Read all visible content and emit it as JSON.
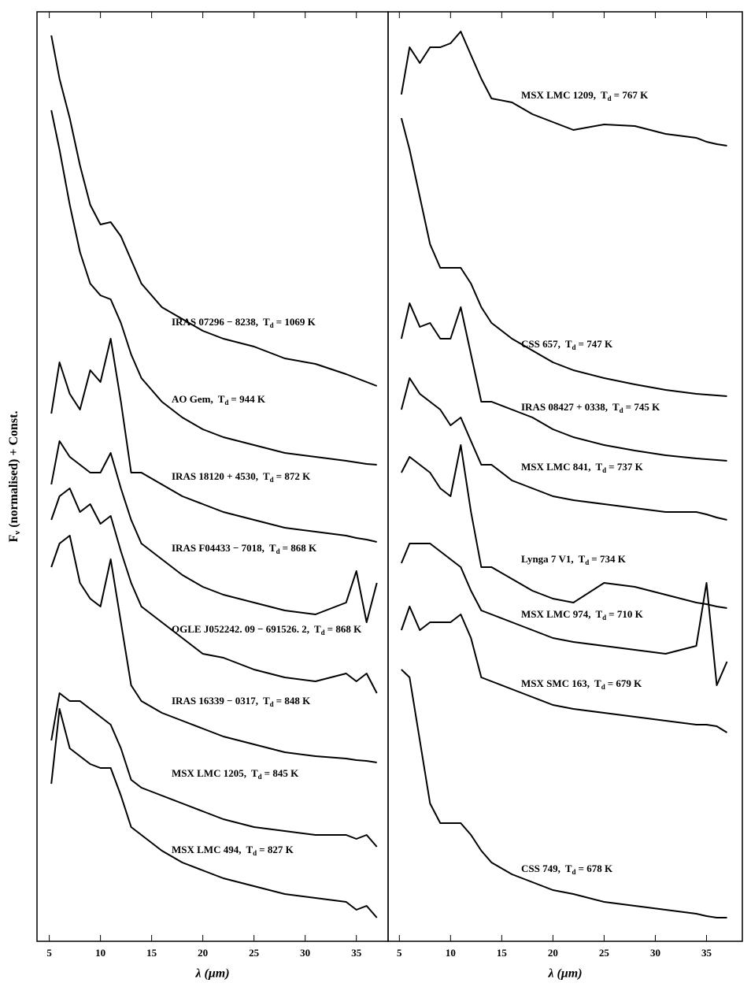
{
  "chart_data": [
    {
      "type": "line",
      "xlabel": "λ (μm)",
      "ylabel_main": "F",
      "ylabel_sub": "ν",
      "ylabel_rest": "(normalised) + Const.",
      "td_symbol": "T",
      "td_subscript": "d",
      "xlim": [
        3.8,
        38.1
      ],
      "ylim": [
        0,
        118
      ],
      "xticks": [
        5,
        10,
        15,
        20,
        25,
        30,
        35
      ],
      "x": [
        5.2,
        6,
        7,
        8,
        9,
        10,
        11,
        12,
        13,
        14,
        16,
        18,
        20,
        22,
        25,
        28,
        31,
        34,
        35,
        36,
        37
      ],
      "series": [
        {
          "name": "IRAS 07296 − 8238,",
          "td_text": "= 1069 K",
          "color": "#000000",
          "values": [
            115.0,
            109.5,
            104.5,
            98.5,
            93.5,
            91.0,
            91.3,
            89.5,
            86.5,
            83.5,
            80.5,
            79.0,
            77.5,
            76.5,
            75.5,
            74.0,
            73.3,
            72.0,
            71.5,
            71.0,
            70.5
          ]
        },
        {
          "name": "AO Gem,",
          "td_text": "= 944 K",
          "color": "#000000",
          "values": [
            105.5,
            100.5,
            93.5,
            87.5,
            83.5,
            82.0,
            81.5,
            78.5,
            74.5,
            71.5,
            68.5,
            66.5,
            65.0,
            64.0,
            63.0,
            62.0,
            61.5,
            61.0,
            60.8,
            60.6,
            60.5
          ]
        },
        {
          "name": "IRAS 18120 + 4530,",
          "td_text": "= 872 K",
          "color": "#000000",
          "values": [
            67.0,
            73.5,
            69.5,
            67.5,
            72.5,
            71.0,
            76.5,
            68.5,
            59.5,
            59.5,
            58.0,
            56.5,
            55.5,
            54.5,
            53.5,
            52.5,
            52.0,
            51.5,
            51.2,
            51.0,
            50.7
          ]
        },
        {
          "name": "IRAS F04433 − 7018,",
          "td_text": "= 868 K",
          "color": "#000000",
          "values": [
            58.0,
            63.5,
            61.5,
            60.5,
            59.5,
            59.5,
            62.0,
            57.5,
            53.5,
            50.5,
            48.5,
            46.5,
            45.0,
            44.0,
            43.0,
            42.0,
            41.5,
            43.0,
            47.0,
            40.5,
            45.5
          ]
        },
        {
          "name": "OGLE J052242. 09 − 691526. 2,",
          "td_text": "= 868 K",
          "color": "#000000",
          "values": [
            53.5,
            56.5,
            57.5,
            54.5,
            55.5,
            53.0,
            54.0,
            49.5,
            45.5,
            42.5,
            40.5,
            38.5,
            36.5,
            36.0,
            34.5,
            33.5,
            33.0,
            34.0,
            33.0,
            34.0,
            31.5
          ]
        },
        {
          "name": "IRAS 16339 − 0317,",
          "td_text": "= 848 K",
          "color": "#000000",
          "values": [
            47.5,
            50.5,
            51.5,
            45.5,
            43.5,
            42.5,
            48.5,
            40.5,
            32.5,
            30.5,
            29.0,
            28.0,
            27.0,
            26.0,
            25.0,
            24.0,
            23.5,
            23.2,
            23.0,
            22.9,
            22.7
          ]
        },
        {
          "name": "MSX LMC 1205,",
          "td_text": "= 845 K",
          "color": "#000000",
          "values": [
            25.5,
            31.5,
            30.5,
            30.5,
            29.5,
            28.5,
            27.5,
            24.5,
            20.5,
            19.5,
            18.5,
            17.5,
            16.5,
            15.5,
            14.5,
            14.0,
            13.5,
            13.5,
            13.0,
            13.5,
            12.0
          ]
        },
        {
          "name": "MSX LMC 494,",
          "td_text": "= 827 K",
          "color": "#000000",
          "values": [
            20.0,
            29.5,
            24.5,
            23.5,
            22.5,
            22.0,
            22.0,
            18.5,
            14.5,
            13.5,
            11.5,
            10.0,
            9.0,
            8.0,
            7.0,
            6.0,
            5.5,
            5.0,
            4.0,
            4.5,
            3.0
          ]
        }
      ]
    },
    {
      "type": "line",
      "xlabel": "λ (μm)",
      "td_symbol": "T",
      "td_subscript": "d",
      "xlim": [
        3.9,
        38.5
      ],
      "ylim": [
        0,
        118
      ],
      "xticks": [
        5,
        10,
        15,
        20,
        25,
        30,
        35
      ],
      "x": [
        5.2,
        6,
        7,
        8,
        9,
        10,
        11,
        12,
        13,
        14,
        16,
        18,
        20,
        22,
        25,
        28,
        31,
        34,
        35,
        36,
        37
      ],
      "series": [
        {
          "name": "MSX LMC 1209,",
          "td_text": "= 767 K",
          "color": "#000000",
          "values": [
            107.5,
            113.5,
            111.5,
            113.5,
            113.5,
            114.0,
            115.5,
            112.5,
            109.5,
            107.0,
            106.5,
            105.0,
            104.0,
            103.0,
            103.7,
            103.5,
            102.5,
            102.0,
            101.5,
            101.2,
            101.0
          ]
        },
        {
          "name": "CSS 657,",
          "td_text": "= 747 K",
          "color": "#000000",
          "values": [
            104.5,
            100.5,
            94.5,
            88.5,
            85.5,
            85.5,
            85.5,
            83.5,
            80.5,
            78.5,
            76.5,
            75.0,
            73.5,
            72.5,
            71.5,
            70.7,
            70.0,
            69.5,
            69.4,
            69.3,
            69.2
          ]
        },
        {
          "name": "IRAS 08427 + 0338,",
          "td_text": "= 745 K",
          "color": "#000000",
          "values": [
            76.5,
            81.0,
            78.0,
            78.5,
            76.5,
            76.5,
            80.5,
            74.5,
            68.5,
            68.5,
            67.5,
            66.5,
            65.0,
            64.0,
            63.0,
            62.3,
            61.7,
            61.3,
            61.2,
            61.1,
            61.0
          ]
        },
        {
          "name": "MSX LMC 841,",
          "td_text": "= 737 K",
          "color": "#000000",
          "values": [
            67.5,
            71.5,
            69.5,
            68.5,
            67.5,
            65.5,
            66.5,
            63.5,
            60.5,
            60.5,
            58.5,
            57.5,
            56.5,
            56.0,
            55.5,
            55.0,
            54.5,
            54.5,
            54.2,
            53.8,
            53.5
          ]
        },
        {
          "name": "Lynga 7 V1,",
          "td_text": "= 734 K",
          "color": "#000000",
          "values": [
            59.5,
            61.5,
            60.5,
            59.5,
            57.5,
            56.5,
            63.0,
            54.5,
            47.5,
            47.5,
            46.0,
            44.5,
            43.5,
            43.0,
            45.5,
            45.0,
            44.0,
            43.0,
            42.8,
            42.5,
            42.3
          ]
        },
        {
          "name": "MSX LMC 974,",
          "td_text": "= 710 K",
          "color": "#000000",
          "values": [
            48.0,
            50.5,
            50.5,
            50.5,
            49.5,
            48.5,
            47.5,
            44.5,
            42.0,
            41.5,
            40.5,
            39.5,
            38.5,
            38.0,
            37.5,
            37.0,
            36.5,
            37.5,
            45.5,
            32.5,
            35.5
          ]
        },
        {
          "name": "MSX SMC 163,",
          "td_text": "= 679 K",
          "color": "#000000",
          "values": [
            39.5,
            42.5,
            39.5,
            40.5,
            40.5,
            40.5,
            41.5,
            38.5,
            33.5,
            33.0,
            32.0,
            31.0,
            30.0,
            29.5,
            29.0,
            28.5,
            28.0,
            27.5,
            27.5,
            27.3,
            26.5
          ]
        },
        {
          "name": "CSS 749,",
          "td_text": "= 678 K",
          "color": "#000000",
          "values": [
            34.5,
            33.5,
            25.5,
            17.5,
            15.0,
            15.0,
            15.0,
            13.5,
            11.5,
            10.0,
            8.5,
            7.5,
            6.5,
            6.0,
            5.0,
            4.5,
            4.0,
            3.5,
            3.2,
            3.0,
            3.0
          ]
        }
      ]
    }
  ]
}
